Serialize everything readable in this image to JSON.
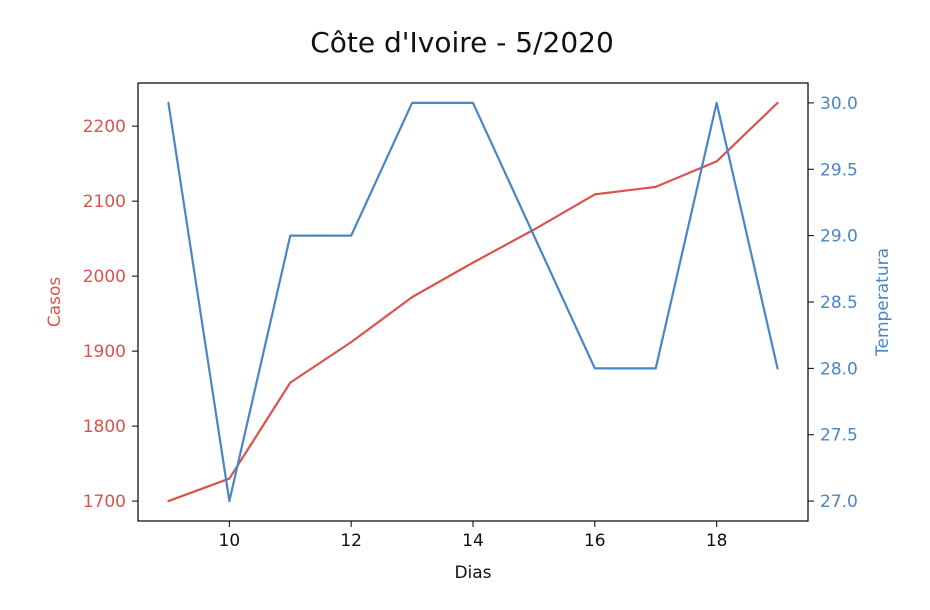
{
  "chart_data": {
    "type": "line",
    "title": "Côte d'Ivoire - 5/2020",
    "xlabel": "Dias",
    "x": [
      9,
      10,
      11,
      12,
      13,
      14,
      15,
      16,
      17,
      18,
      19
    ],
    "xlim": [
      8.5,
      19.5
    ],
    "xticks": [
      "10",
      "12",
      "14",
      "16",
      "18"
    ],
    "grid": false,
    "series": [
      {
        "name": "Casos",
        "axis": "left",
        "color": "#d9534f",
        "values": [
          1700,
          1730,
          1858,
          1912,
          1972,
          2018,
          2062,
          2109,
          2119,
          2153,
          2231
        ]
      },
      {
        "name": "Temperatura",
        "axis": "right",
        "color": "#4a86c5",
        "values": [
          30.0,
          27.0,
          29.0,
          29.0,
          30.0,
          30.0,
          29.0,
          28.0,
          28.0,
          30.0,
          28.0
        ]
      }
    ],
    "y_left": {
      "label": "Casos",
      "color": "#d9534f",
      "ylim": [
        1673.45,
        2257.55
      ],
      "ticks": [
        "1700",
        "1800",
        "1900",
        "2000",
        "2100",
        "2200"
      ]
    },
    "y_right": {
      "label": "Temperatura",
      "color": "#4a86c5",
      "ylim": [
        26.85,
        30.15
      ],
      "ticks": [
        "27.0",
        "27.5",
        "28.0",
        "28.5",
        "29.0",
        "29.5",
        "30.0"
      ]
    }
  }
}
